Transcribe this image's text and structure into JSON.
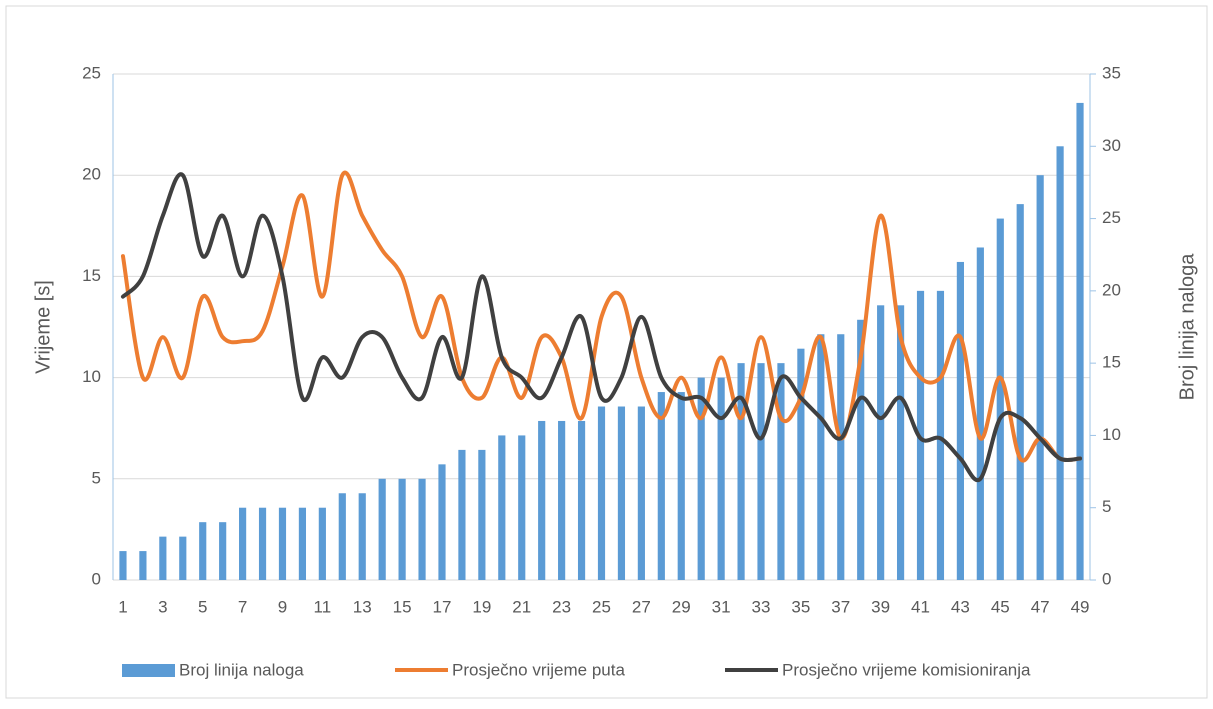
{
  "chart_data": {
    "type": "combo",
    "y_label": "Vrijeme [s]",
    "y2_label": "Broj linija naloga",
    "categories": [
      "1",
      null,
      "3",
      null,
      "5",
      null,
      "7",
      null,
      "9",
      null,
      "11",
      null,
      "13",
      null,
      "15",
      null,
      "17",
      null,
      "19",
      null,
      "21",
      null,
      "23",
      null,
      "25",
      null,
      "27",
      null,
      "29",
      null,
      "31",
      null,
      "33",
      null,
      "35",
      null,
      "37",
      null,
      "39",
      null,
      "41",
      null,
      "43",
      null,
      "45",
      null,
      "47",
      null,
      "49"
    ],
    "series": [
      {
        "name": "Broj linija naloga",
        "type": "bar",
        "axis": "y2",
        "color": "#5b9bd5",
        "values": [
          2,
          2,
          3,
          3,
          4,
          4,
          5,
          5,
          5,
          5,
          5,
          6,
          6,
          7,
          7,
          7,
          8,
          9,
          9,
          10,
          10,
          11,
          11,
          11,
          12,
          12,
          12,
          13,
          13,
          14,
          14,
          15,
          15,
          15,
          16,
          17,
          17,
          18,
          19,
          19,
          20,
          20,
          22,
          23,
          25,
          26,
          28,
          30,
          33
        ]
      },
      {
        "name": "Prosječno vrijeme puta",
        "type": "line",
        "axis": "y",
        "color": "#ed7d31",
        "values": [
          16,
          10,
          12,
          10,
          14,
          12,
          11.8,
          12.3,
          15.5,
          19,
          14,
          20,
          18,
          16.3,
          15,
          12,
          14,
          10,
          9,
          11,
          9,
          12,
          11,
          8,
          13,
          14,
          10,
          8,
          10,
          8,
          11,
          8,
          12,
          8,
          9,
          12,
          7,
          11,
          18,
          12,
          10,
          10,
          12,
          7,
          10,
          6,
          7,
          6,
          6
        ]
      },
      {
        "name": "Prosječno vrijeme komisioniranja",
        "type": "line",
        "axis": "y",
        "color": "#404040",
        "values": [
          14,
          15,
          18,
          20,
          16,
          18,
          15,
          18,
          15,
          9,
          11,
          10,
          12,
          12,
          10,
          9,
          12,
          10,
          15,
          11,
          10,
          9,
          11,
          13,
          9,
          10,
          13,
          10,
          9,
          9,
          8,
          9,
          7,
          10,
          9,
          8,
          7,
          9,
          8,
          9,
          7,
          7,
          6,
          5,
          8,
          8,
          7,
          6,
          6
        ]
      }
    ],
    "ylim": [
      0,
      25
    ],
    "yticks": [
      0,
      5,
      10,
      15,
      20,
      25
    ],
    "y2lim": [
      0,
      35
    ],
    "y2ticks": [
      0,
      5,
      10,
      15,
      20,
      25,
      30,
      35
    ],
    "grid": true,
    "legend": "bottom"
  }
}
